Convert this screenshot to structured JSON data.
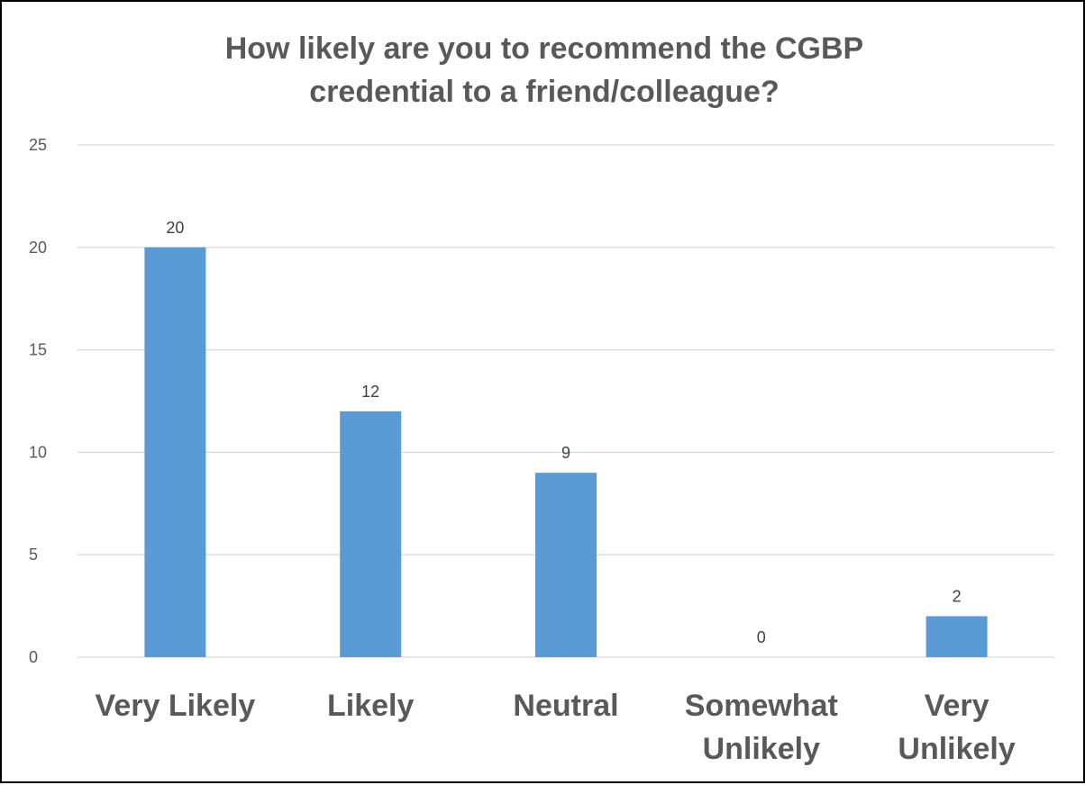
{
  "chart_data": {
    "type": "bar",
    "title": "How likely are you to recommend the CGBP\ncredential to a friend/colleague?",
    "categories": [
      [
        "Very Likely"
      ],
      [
        "Likely"
      ],
      [
        "Neutral"
      ],
      [
        "Somewhat",
        "Unlikely"
      ],
      [
        "Very",
        "Unlikely"
      ]
    ],
    "values": [
      20,
      12,
      9,
      0,
      2
    ],
    "data_labels": [
      "20",
      "12",
      "9",
      "0",
      "2"
    ],
    "yticks": [
      "0",
      "5",
      "10",
      "15",
      "20",
      "25"
    ],
    "ylim": [
      0,
      25
    ],
    "xlabel": "",
    "ylabel": "",
    "grid": true,
    "legend": "none",
    "colors": {
      "bar": "#5B9BD5",
      "grid": "#D9D9D9",
      "text": "#595959"
    }
  }
}
